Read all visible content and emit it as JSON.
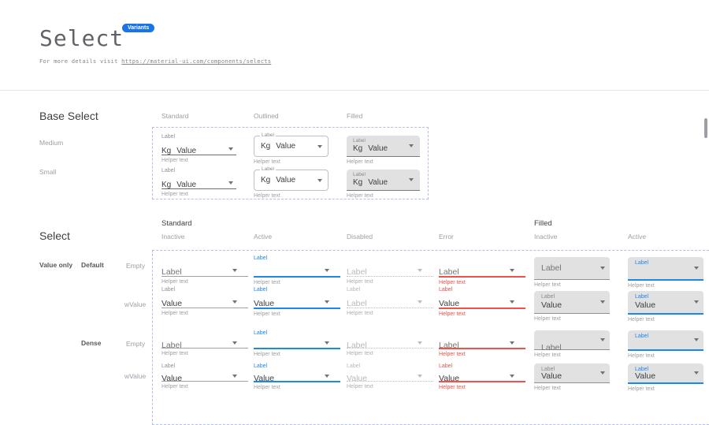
{
  "header": {
    "title": "Select",
    "badge": "Variants",
    "link_prefix": "For more details visit ",
    "link_url": "https://material-ui.com/components/selects"
  },
  "colors": {
    "accent_blue": "#1e88e5",
    "badge_blue": "#1a73e8",
    "error_red": "#f0524a",
    "filled_bg": "#e1e1e1",
    "dashed_frame": "#b5bcf0"
  },
  "base_select": {
    "heading": "Base Select",
    "column_headers": [
      "Standard",
      "Outlined",
      "Filled"
    ],
    "row_headers": [
      "Medium",
      "Small"
    ],
    "cell": {
      "label": "Label",
      "prefix": "Kg",
      "value": "Value",
      "helper": "Helper text"
    }
  },
  "select_grid": {
    "heading": "Select",
    "group_headers": [
      "Standard",
      "Filled"
    ],
    "column_headers": [
      "Inactive",
      "Active",
      "Disabled",
      "Error",
      "Inactive",
      "Active"
    ],
    "row_headers": [
      "Value only",
      "Default",
      "Empty",
      "wValue",
      "Dense",
      "Empty",
      "wValue"
    ],
    "helper": "Helper text",
    "rows": [
      {
        "dense": false,
        "cells": [
          {
            "variant": "standard",
            "state": "inactive",
            "label": "",
            "value": "Label"
          },
          {
            "variant": "standard",
            "state": "active",
            "label": "Label",
            "value": ""
          },
          {
            "variant": "standard",
            "state": "disabled",
            "label": "",
            "value": "Label"
          },
          {
            "variant": "standard",
            "state": "error",
            "label": "",
            "value": "Label"
          },
          {
            "variant": "filled",
            "state": "inactive",
            "label": "",
            "value": "Label"
          },
          {
            "variant": "filled",
            "state": "active",
            "label": "Label",
            "value": ""
          }
        ]
      },
      {
        "dense": false,
        "cells": [
          {
            "variant": "standard",
            "state": "inactive",
            "label": "Label",
            "value": "Value"
          },
          {
            "variant": "standard",
            "state": "active",
            "label": "Label",
            "value": "Value"
          },
          {
            "variant": "standard",
            "state": "disabled",
            "label": "Label",
            "value": "Label"
          },
          {
            "variant": "standard",
            "state": "error",
            "label": "Label",
            "value": "Value"
          },
          {
            "variant": "filled",
            "state": "inactive",
            "label": "Label",
            "value": "Value"
          },
          {
            "variant": "filled",
            "state": "active",
            "label": "Label",
            "value": "Value"
          }
        ]
      },
      {
        "dense": true,
        "cells": [
          {
            "variant": "standard",
            "state": "inactive",
            "label": "",
            "value": "Label"
          },
          {
            "variant": "standard",
            "state": "active",
            "label": "Label",
            "value": ""
          },
          {
            "variant": "standard",
            "state": "disabled",
            "label": "",
            "value": "Label"
          },
          {
            "variant": "standard",
            "state": "error",
            "label": "",
            "value": "Label"
          },
          {
            "variant": "filled",
            "state": "inactive",
            "label": "",
            "value": "Label"
          },
          {
            "variant": "filled",
            "state": "active",
            "label": "Label",
            "value": ""
          }
        ]
      },
      {
        "dense": true,
        "cells": [
          {
            "variant": "standard",
            "state": "inactive",
            "label": "Label",
            "value": "Value"
          },
          {
            "variant": "standard",
            "state": "active",
            "label": "Label",
            "value": "Value"
          },
          {
            "variant": "standard",
            "state": "disabled",
            "label": "Label",
            "value": "Value"
          },
          {
            "variant": "standard",
            "state": "error",
            "label": "Label",
            "value": "Value"
          },
          {
            "variant": "filled",
            "state": "inactive",
            "label": "Label",
            "value": "Value"
          },
          {
            "variant": "filled",
            "state": "active",
            "label": "Label",
            "value": "Value"
          }
        ]
      }
    ]
  }
}
